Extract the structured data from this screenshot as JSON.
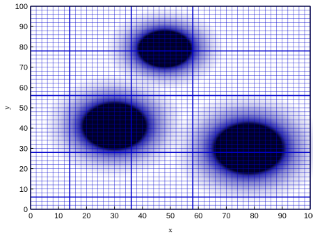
{
  "chart_data": {
    "type": "heatmap",
    "title": "",
    "xlabel": "x",
    "ylabel": "y",
    "xlim": [
      0,
      100
    ],
    "ylim": [
      0,
      100
    ],
    "x_ticks": [
      "0",
      "10",
      "20",
      "30",
      "40",
      "50",
      "60",
      "70",
      "80",
      "90",
      "100"
    ],
    "y_ticks": [
      "0",
      "10",
      "20",
      "30",
      "40",
      "50",
      "60",
      "70",
      "80",
      "90",
      "100"
    ],
    "grid": "on",
    "fine_grid_step": 2,
    "coarse_grid_x": [
      0,
      14,
      36,
      58,
      100
    ],
    "coarse_grid_y": [
      0,
      6,
      28,
      56,
      78,
      100
    ],
    "blobs": [
      {
        "cx": 48,
        "cy": 79,
        "rx": 10,
        "ry": 9.5
      },
      {
        "cx": 30,
        "cy": 41,
        "rx": 12,
        "ry": 12
      },
      {
        "cx": 78,
        "cy": 30,
        "rx": 13,
        "ry": 13
      }
    ],
    "colors": {
      "background": "#ffffff",
      "blob_core": "#000028",
      "blob_mid": "#2a2aa8",
      "grid": "#0000cc",
      "axis": "#000000"
    }
  }
}
